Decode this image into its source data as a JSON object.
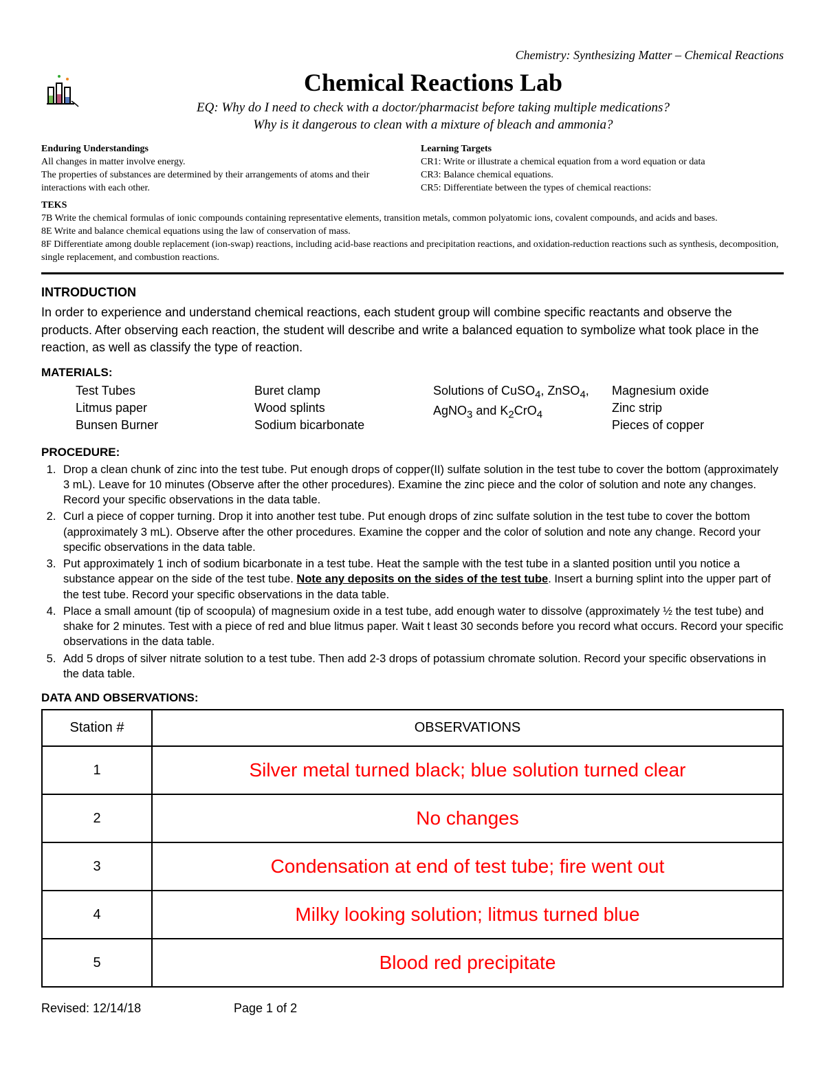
{
  "header": {
    "course_line": "Chemistry: Synthesizing Matter – Chemical Reactions",
    "title": "Chemical Reactions Lab",
    "eq_prefix": "EQ: ",
    "eq_line1": "Why do I need to check with a doctor/pharmacist before taking multiple medications?",
    "eq_line2": "Why is it dangerous to clean with a mixture of bleach and ammonia?"
  },
  "meta": {
    "enduring_head": "Enduring Understandings",
    "enduring_1": "All changes in matter involve energy.",
    "enduring_2": "The properties of substances are determined by their arrangements of atoms and their interactions with each other.",
    "learning_head": "Learning Targets",
    "lt1": "CR1: Write or illustrate a chemical equation from a word equation or data",
    "lt2": "CR3: Balance chemical equations.",
    "lt3": "CR5: Differentiate between the types of chemical reactions:",
    "teks_head": "TEKS",
    "teks_1": "7B Write the chemical formulas of ionic compounds containing representative elements, transition metals, common polyatomic ions, covalent compounds, and acids and bases.",
    "teks_2": "8E Write and balance chemical equations using the law of conservation of mass.",
    "teks_3": "8F Differentiate among double replacement (ion-swap) reactions, including acid-base reactions and precipitation reactions, and oxidation-reduction reactions such as synthesis, decomposition, single replacement, and combustion reactions."
  },
  "intro": {
    "head": "INTRODUCTION",
    "body": "In order to experience and understand chemical reactions, each student group will combine specific reactants and observe the products.  After observing each reaction, the student will describe and write a balanced equation to symbolize what took place in the reaction, as well as classify the type of reaction."
  },
  "materials": {
    "head": "MATERIALS:",
    "col1": [
      "Test Tubes",
      "Litmus paper",
      "Bunsen Burner"
    ],
    "col2": [
      "Buret clamp",
      "Wood splints",
      "Sodium bicarbonate"
    ],
    "col3_html": "Solutions of CuSO<sub>4</sub>, ZnSO<sub>4</sub>, AgNO<sub>3</sub> and K<sub>2</sub>CrO<sub>4</sub>",
    "col4": [
      "Magnesium oxide",
      "Zinc strip",
      "Pieces of copper"
    ]
  },
  "procedure": {
    "head": "PROCEDURE:",
    "items": [
      {
        "text": "Drop a clean chunk of zinc into the test tube.  Put enough drops of copper(II) sulfate solution in the test tube to cover the bottom (approximately 3 mL).  Leave for 10 minutes (Observe after the other procedures).  Examine the zinc piece and the color of solution and note any changes.  Record your specific observations in the data table."
      },
      {
        "text": "Curl a piece of copper turning.  Drop it into another test tube.  Put enough drops of zinc sulfate solution in the test tube to cover the bottom (approximately 3 mL).  Observe after the other procedures.  Examine the copper and the color of solution and note any change.  Record your specific observations in the data table."
      },
      {
        "pre": "Put approximately 1 inch of sodium bicarbonate in a test tube.  Heat the sample with the test tube in a slanted position until you notice a substance appear on the side of the test tube.  ",
        "bold_underline": "Note any deposits on the sides of the test tube",
        "post": ".  Insert a burning splint into the upper part of the test tube.  Record your specific observations in the data table."
      },
      {
        "text": "Place a small amount (tip of scoopula) of magnesium oxide in a test tube, add enough water to dissolve (approximately ½ the test tube) and shake for 2 minutes.  Test with a piece of red and blue litmus paper.  Wait t least 30 seconds before you record what occurs.  Record your specific observations in the data table."
      },
      {
        "text": "Add 5 drops of silver nitrate solution to a test tube. Then add 2-3 drops of potassium chromate solution.  Record your specific observations in the data table."
      }
    ]
  },
  "data": {
    "head": "DATA AND OBSERVATIONS:",
    "col1": "Station #",
    "col2": "OBSERVATIONS",
    "rows": [
      {
        "station": "1",
        "obs": "Silver metal turned black; blue solution turned clear"
      },
      {
        "station": "2",
        "obs": "No changes"
      },
      {
        "station": "3",
        "obs": "Condensation at end of test tube; fire went out"
      },
      {
        "station": "4",
        "obs": "Milky looking solution; litmus turned blue"
      },
      {
        "station": "5",
        "obs": "Blood red precipitate"
      }
    ]
  },
  "footer": {
    "revised": "Revised: 12/14/18",
    "page": "Page 1 of 2"
  },
  "style": {
    "obs_color": "#ff0000"
  }
}
